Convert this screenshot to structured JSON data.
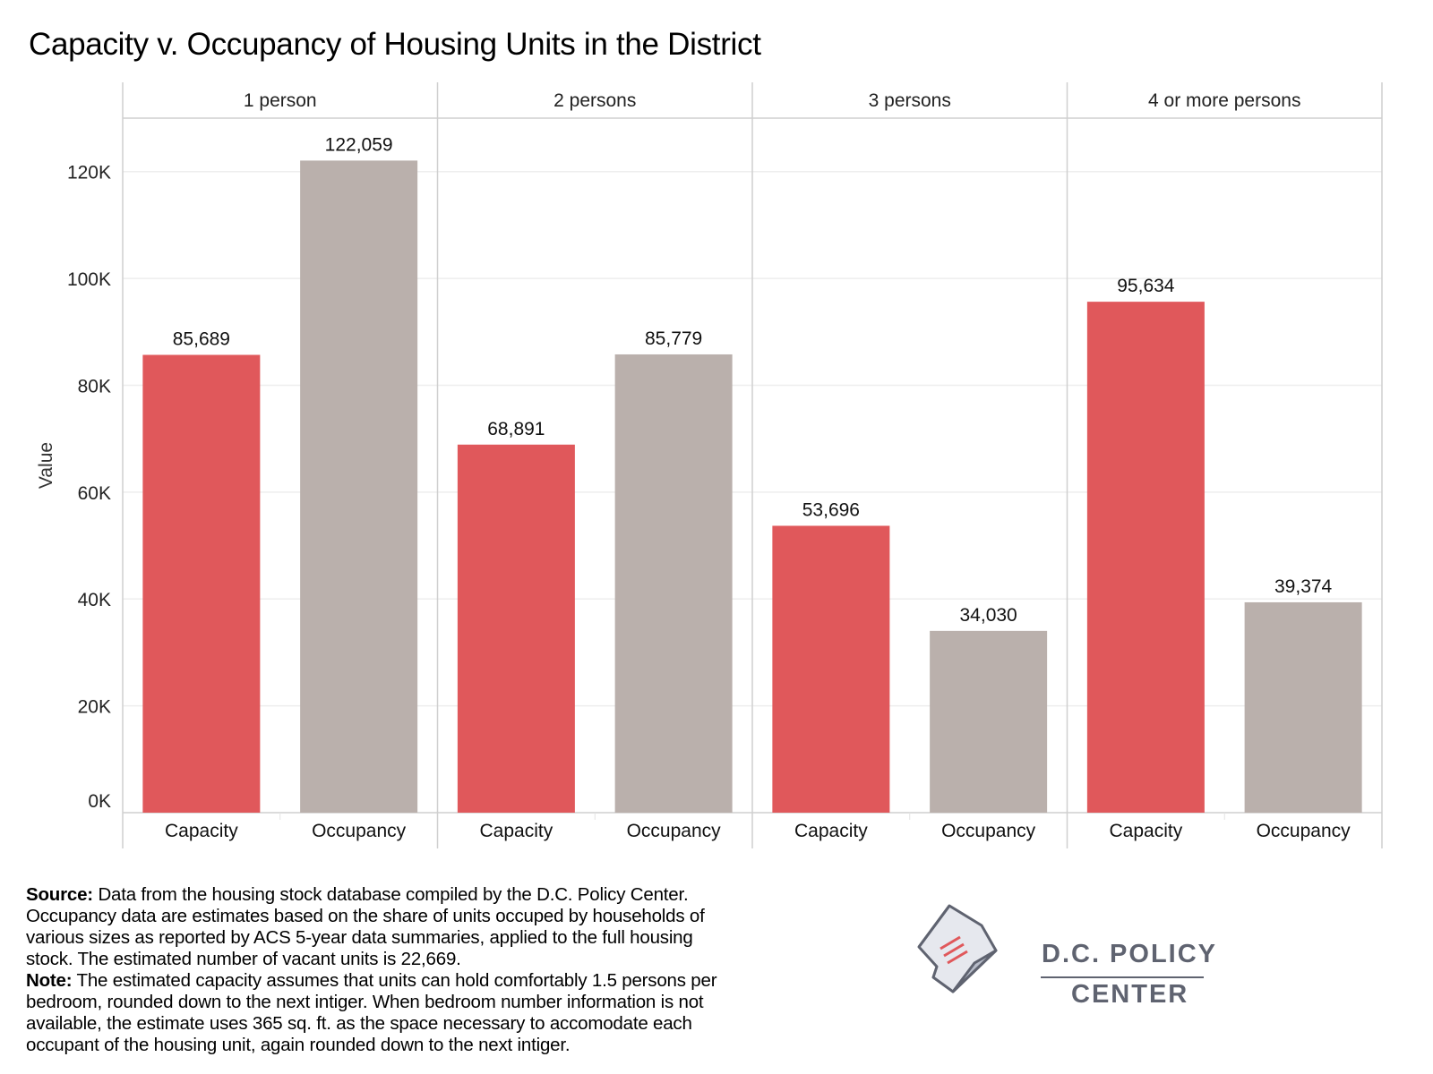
{
  "chart_data": {
    "type": "bar",
    "title": "Capacity v. Occupancy of Housing Units in the District",
    "ylabel": "Value",
    "ylim": [
      0,
      130000
    ],
    "yticks": [
      0,
      20000,
      40000,
      60000,
      80000,
      100000,
      120000
    ],
    "ytick_labels": [
      "0K",
      "20K",
      "40K",
      "60K",
      "80K",
      "100K",
      "120K"
    ],
    "grid": true,
    "panels": [
      "1 person",
      "2 persons",
      "3 persons",
      "4 or more persons"
    ],
    "categories": [
      "Capacity",
      "Occupancy"
    ],
    "values": [
      [
        85689,
        122059
      ],
      [
        68891,
        85779
      ],
      [
        53696,
        34030
      ],
      [
        95634,
        39374
      ]
    ],
    "value_labels": [
      [
        "85,689",
        "122,059"
      ],
      [
        "68,891",
        "85,779"
      ],
      [
        "53,696",
        "34,030"
      ],
      [
        "95,634",
        "39,374"
      ]
    ],
    "colors": {
      "Capacity": "#e0585b",
      "Occupancy": "#bab0ac"
    }
  },
  "notes": {
    "source_label": "Source:",
    "source_text": "Data from the housing stock database compiled by the D.C. Policy Center. Occupancy data are estimates based on the share of units occuped by households of various sizes as reported by ACS 5-year data summaries, applied to the full housing stock. The estimated number of vacant units is 22,669.",
    "note_label": "Note:",
    "note_text": "The estimated capacity assumes that units can hold comfortably 1.5 persons per bedroom, rounded down to the next intiger. When bedroom number information is not available, the estimate uses 365 sq. ft. as the space necessary to accomodate each occupant of the housing unit, again rounded down to the next intiger."
  },
  "logo": {
    "line1": "D.C. POLICY",
    "line2": "CENTER",
    "icon": "dc-map-document-icon",
    "color": "#5f6370",
    "accent": "#e0585b"
  }
}
